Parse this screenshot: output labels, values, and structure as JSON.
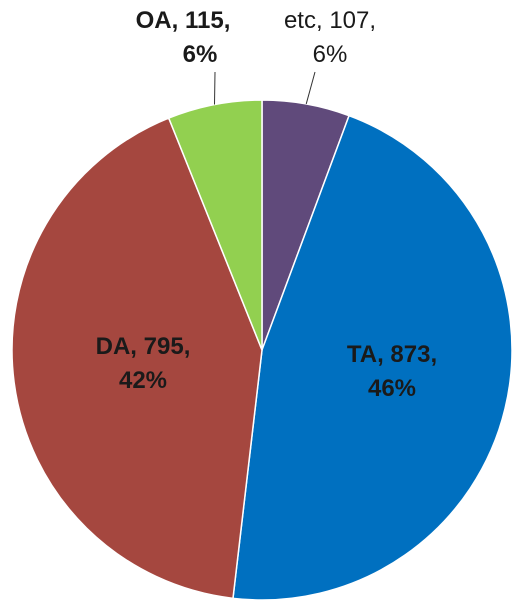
{
  "chart_data": {
    "type": "pie",
    "categories": [
      "etc",
      "TA",
      "DA",
      "OA"
    ],
    "values": [
      107,
      873,
      795,
      115
    ],
    "percent_labels": [
      "6%",
      "46%",
      "42%",
      "6%"
    ],
    "colors": [
      "#604a7b",
      "#0070c0",
      "#a5473f",
      "#92d050"
    ],
    "start_angle": 90,
    "direction": "clockwise"
  }
}
